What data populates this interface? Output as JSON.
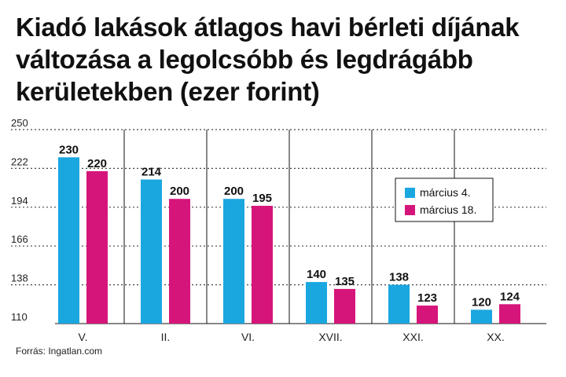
{
  "chart_data": {
    "type": "bar",
    "title": "Kiadó lakások átlagos havi bérleti díjának változása a legolcsóbb és legdrágább kerületekben (ezer forint)",
    "categories": [
      "V.",
      "II.",
      "VI.",
      "XVII.",
      "XXI.",
      "XX."
    ],
    "series": [
      {
        "name": "március 4.",
        "values": [
          230,
          214,
          200,
          140,
          138,
          120
        ],
        "color": "#1aa7e0"
      },
      {
        "name": "március 18.",
        "values": [
          220,
          200,
          195,
          135,
          123,
          124
        ],
        "color": "#d6157a"
      }
    ],
    "yticks": [
      250,
      222,
      194,
      166,
      138,
      110
    ],
    "ylim": [
      110,
      250
    ],
    "legend_position": "right",
    "grid": "dotted-horizontal"
  },
  "source": "Forrás: Ingatlan.com"
}
